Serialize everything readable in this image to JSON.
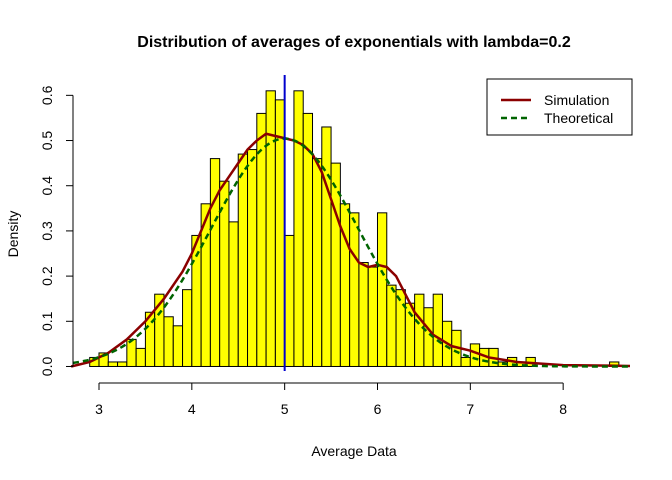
{
  "chart_data": {
    "type": "bar",
    "title": "Distribution of averages of exponentials with lambda=0.2",
    "xlabel": "Average Data",
    "ylabel": "Density",
    "xlim": [
      2.72,
      8.72
    ],
    "ylim": [
      -0.01,
      0.645
    ],
    "x_ticks": [
      3,
      4,
      5,
      6,
      7,
      8
    ],
    "y_ticks": [
      0.0,
      0.1,
      0.2,
      0.3,
      0.4,
      0.5,
      0.6
    ],
    "x_tick_labels": [
      "3",
      "4",
      "5",
      "6",
      "7",
      "8"
    ],
    "y_tick_labels": [
      "0.0",
      "0.1",
      "0.2",
      "0.3",
      "0.4",
      "0.5",
      "0.6"
    ],
    "bin_width": 0.1,
    "bins_start": [
      2.9,
      3.0,
      3.1,
      3.2,
      3.3,
      3.4,
      3.5,
      3.6,
      3.7,
      3.8,
      3.9,
      4.0,
      4.1,
      4.2,
      4.3,
      4.4,
      4.5,
      4.6,
      4.7,
      4.8,
      4.9,
      5.0,
      5.1,
      5.2,
      5.3,
      5.4,
      5.5,
      5.6,
      5.7,
      5.8,
      5.9,
      6.0,
      6.1,
      6.2,
      6.3,
      6.4,
      6.5,
      6.6,
      6.7,
      6.8,
      6.9,
      7.0,
      7.1,
      7.2,
      7.3,
      7.4,
      7.5,
      7.6,
      7.7,
      7.8,
      7.9,
      8.0,
      8.1,
      8.2,
      8.3,
      8.4,
      8.5
    ],
    "densities": [
      0.02,
      0.03,
      0.01,
      0.01,
      0.06,
      0.04,
      0.12,
      0.16,
      0.11,
      0.09,
      0.17,
      0.29,
      0.36,
      0.46,
      0.41,
      0.32,
      0.47,
      0.48,
      0.56,
      0.61,
      0.59,
      0.29,
      0.61,
      0.56,
      0.46,
      0.53,
      0.45,
      0.36,
      0.34,
      0.23,
      0.22,
      0.34,
      0.18,
      0.17,
      0.14,
      0.16,
      0.13,
      0.16,
      0.1,
      0.08,
      0.02,
      0.05,
      0.04,
      0.04,
      0.01,
      0.02,
      0.01,
      0.02,
      0.0,
      0.0,
      0.0,
      0.0,
      0.0,
      0.0,
      0.0,
      0.0,
      0.01
    ],
    "vline_x": 5.0,
    "series": [
      {
        "name": "Simulation",
        "color": "#8b0000",
        "style": "solid",
        "x": [
          2.7,
          2.9,
          3.1,
          3.3,
          3.5,
          3.7,
          3.9,
          4.0,
          4.1,
          4.2,
          4.3,
          4.4,
          4.5,
          4.6,
          4.7,
          4.8,
          4.9,
          5.0,
          5.1,
          5.2,
          5.3,
          5.4,
          5.5,
          5.6,
          5.7,
          5.8,
          5.9,
          6.0,
          6.1,
          6.2,
          6.3,
          6.4,
          6.6,
          6.8,
          7.0,
          7.2,
          7.5,
          8.0,
          8.5,
          8.72
        ],
        "y": [
          0.0,
          0.01,
          0.03,
          0.06,
          0.1,
          0.15,
          0.21,
          0.25,
          0.3,
          0.35,
          0.39,
          0.42,
          0.45,
          0.48,
          0.5,
          0.515,
          0.51,
          0.505,
          0.5,
          0.49,
          0.47,
          0.43,
          0.37,
          0.31,
          0.26,
          0.23,
          0.22,
          0.225,
          0.22,
          0.2,
          0.16,
          0.12,
          0.07,
          0.045,
          0.035,
          0.02,
          0.01,
          0.003,
          0.002,
          0.001
        ]
      },
      {
        "name": "Theoretical",
        "color": "#006400",
        "style": "dashed",
        "mean": 5.0,
        "sd": 0.791
      }
    ],
    "legend": [
      "Simulation",
      "Theoretical"
    ],
    "legend_position": "top-right",
    "grid": false
  }
}
